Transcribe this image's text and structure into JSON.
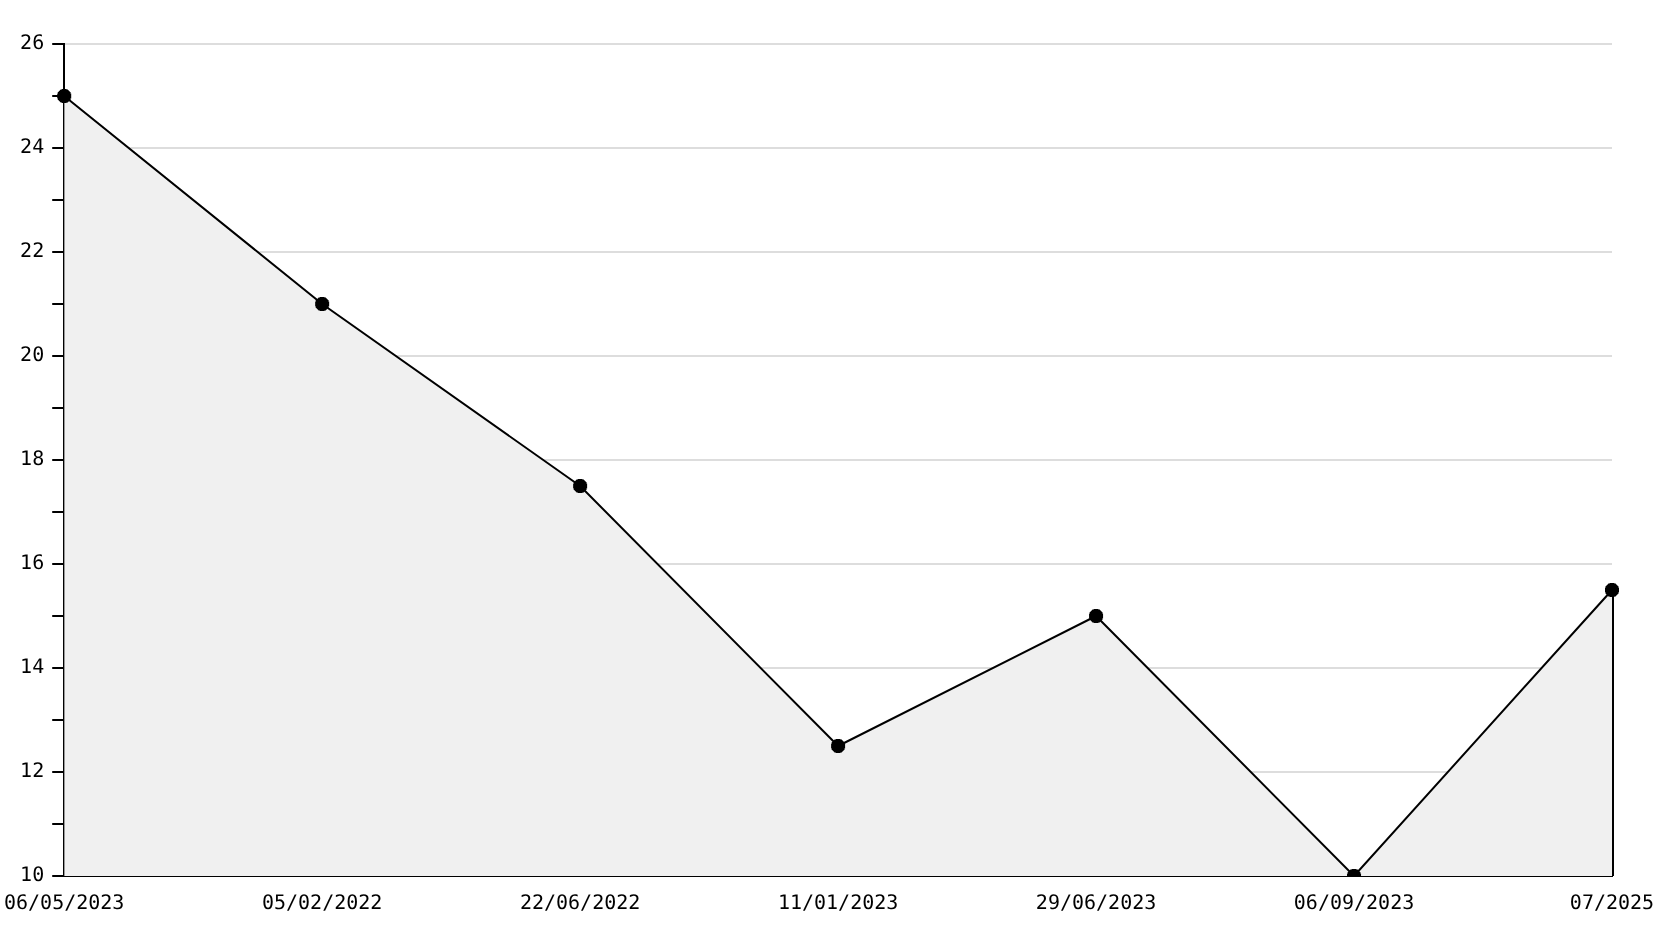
{
  "chart_data": {
    "type": "area",
    "categories": [
      "06/05/2023",
      "05/02/2022",
      "22/06/2022",
      "11/01/2023",
      "29/06/2023",
      "06/09/2023",
      "07/2025"
    ],
    "series": [
      {
        "color": "#000000",
        "values": [
          25,
          21,
          17.5,
          12.5,
          15,
          10,
          15.5
        ]
      }
    ],
    "ylim": [
      10,
      26
    ],
    "yticks": [
      10,
      {
        "value": 11,
        "label": null
      },
      12,
      {
        "value": 13,
        "label": null
      },
      14,
      {
        "value": 15,
        "label": null
      },
      16,
      {
        "value": 17,
        "label": null
      },
      18,
      {
        "value": 19,
        "label": null
      },
      20,
      {
        "value": 21,
        "label": null
      },
      22,
      {
        "value": 23,
        "label": null
      },
      24,
      {
        "value": 25,
        "label": null
      },
      26
    ],
    "grid": "y",
    "marker": "cross",
    "line_style": "solid",
    "legend": false
  }
}
